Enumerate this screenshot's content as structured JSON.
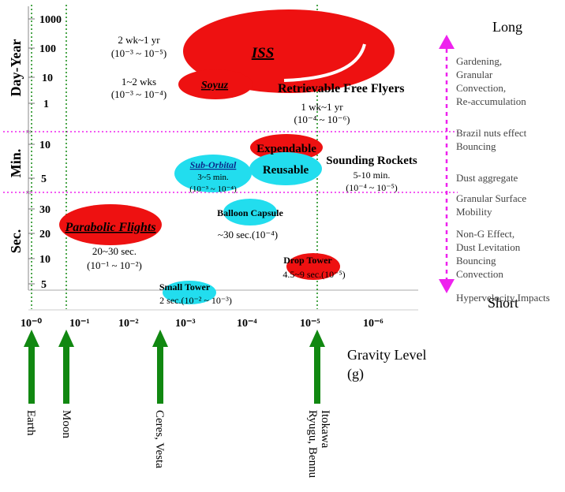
{
  "chart_data": {
    "type": "diagram",
    "y_sections": [
      {
        "label": "Day-Year",
        "ticks": [
          "1000",
          "100",
          "10",
          "1"
        ]
      },
      {
        "label": "Min.",
        "ticks": [
          "10",
          "5"
        ]
      },
      {
        "label": "Sec.",
        "ticks": [
          "30",
          "20",
          "10",
          "5"
        ]
      }
    ],
    "x_ticks": [
      "10⁻⁰",
      "10⁻¹",
      "10⁻²",
      "10⁻³",
      "10⁻⁴",
      "10⁻⁵",
      "10⁻⁶"
    ],
    "x_title": [
      "Gravity Level",
      "(g)"
    ],
    "right_top": "Long",
    "right_bottom": "Short",
    "phenomena": [
      [
        "Gardening,",
        "Granular",
        "Convection,",
        "Re-accumulation"
      ],
      [
        "Brazil nuts effect",
        "Bouncing"
      ],
      [
        "Dust aggregate"
      ],
      [
        "Granular Surface",
        " Mobility"
      ],
      [
        "Non-G Effect,",
        "Dust Levitation",
        "Bouncing",
        "Convection"
      ],
      [
        "Hypervelocity Impacts"
      ]
    ],
    "bodies": [
      "Earth",
      "Moon",
      "Ceres, Vesta",
      "Ryugu, Bennu",
      "Itokawa"
    ],
    "platforms": {
      "iss": "ISS",
      "soyuz": "Soyuz",
      "retrievable": "Retrievable Free Flyers",
      "retrievable_time": "1 wk~1 yr",
      "retrievable_g": "(10⁻⁴ ~ 10⁻⁶)",
      "iss_time": "2 wk~1 yr",
      "iss_g": "(10⁻³ ~ 10⁻⁵)",
      "soyuz_time": "1~2 wks",
      "soyuz_g": "(10⁻³ ~ 10⁻⁴)",
      "expendable": "Expendable",
      "reusable": "Reusable",
      "sounding": "Sounding Rockets",
      "sounding_time": "5-10 min.",
      "sounding_g": "(10⁻⁴ ~ 10⁻⁵)",
      "suborbital": "Sub-Orbital",
      "suborbital_time": "3~5 min.",
      "suborbital_g": "(10⁻³ ~ 10⁻⁴)",
      "balloon": "Balloon Capsule",
      "balloon_time": "~30 sec.(10⁻⁴)",
      "parabolic": "Parabolic Flights",
      "parabolic_time": "20~30 sec.",
      "parabolic_g": "(10⁻¹ ~ 10⁻²)",
      "droptower": "Drop Tower",
      "droptower_time": "4.5~9 sec.(10⁻⁵)",
      "smalltower": "Small Tower",
      "smalltower_time": "2 sec.(10⁻² ~ 10⁻³)"
    },
    "colors": {
      "red": "#ee1111",
      "cyan": "#22ddee",
      "magenta": "#ee22ee",
      "green": "#118811"
    }
  }
}
